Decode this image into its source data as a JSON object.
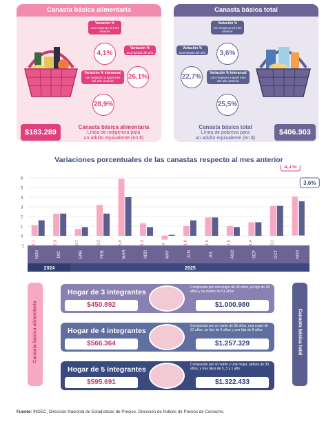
{
  "food": {
    "title": "Canasta básica alimentaria",
    "monthly_label": "Variación %",
    "monthly_sub": "con respecto al mes anterior",
    "monthly_value": "4,1%",
    "ytd_label": "Variación %",
    "ytd_sub": "acumulada del año",
    "ytd_value": "26,1%",
    "yoy_label": "Variación % interanual",
    "yoy_sub": "con respecto a igual mes del año anterior",
    "yoy_value": "28,9%",
    "amount": "$183.289",
    "desc_title": "Canasta básica alimentaria",
    "desc_line1": "Línea de indigencia para",
    "desc_line2": "un adulto equivalente (en $)"
  },
  "total": {
    "title": "Canasta básica total",
    "monthly_label": "Variación %",
    "monthly_sub": "con respecto al mes anterior",
    "monthly_value": "3,6%",
    "ytd_label": "Variación %",
    "ytd_sub": "acumulada del año",
    "ytd_value": "22,7%",
    "yoy_label": "Variación % interanual",
    "yoy_sub": "con respecto a igual mes del año anterior",
    "yoy_value": "25,5%",
    "amount": "$406.903",
    "desc_title": "Canasta básica total",
    "desc_line1": "Línea de pobreza para",
    "desc_line2": "un adulto equivalente (en $)"
  },
  "colors": {
    "pink": "#f7a9c4",
    "pink_dark": "#e0407e",
    "pink_bg": "#fbe3eb",
    "purple": "#6d6496",
    "purple_bg": "#e9e6f1",
    "navy": "#4a5a8c"
  },
  "chart_data": {
    "type": "bar",
    "title": "Variaciones porcentuales de las canastas respecto al mes anterior",
    "categories": [
      "NOV",
      "DIC",
      "ENE",
      "FEB",
      "MAR",
      "ABR",
      "MAY",
      "JUN",
      "JUL",
      "AGO",
      "SEP",
      "OCT",
      "NOV"
    ],
    "year_labels": [
      "2024",
      "2025"
    ],
    "series": [
      {
        "name": "Canasta básica alimentaria",
        "color": "#f7a9c4",
        "values": [
          1.1,
          2.3,
          0.7,
          3.2,
          5.9,
          1.3,
          -0.4,
          1.0,
          1.9,
          1.0,
          1.4,
          3.1,
          4.1
        ],
        "labels": [
          "1,1",
          "2,3",
          "0,7",
          "3,2",
          "5,9",
          "1,3",
          "-0,4",
          "1,0",
          "1,9",
          "1,0",
          "1,4",
          "3,1",
          "4,1%"
        ]
      },
      {
        "name": "Canasta básica total",
        "color": "#5a5f8f",
        "values": [
          1.6,
          2.3,
          0.9,
          2.3,
          4.0,
          0.9,
          0.1,
          1.6,
          1.9,
          0.9,
          1.4,
          3.1,
          3.6
        ],
        "labels": [
          "1,6",
          "2,3",
          "0,9",
          "2,3",
          "4,0",
          "0,9",
          "0,1",
          "1,6",
          "1,9",
          "0,9",
          "1,4",
          "3,1",
          "3,6%"
        ]
      }
    ],
    "yticks": [
      "6",
      "5",
      "4",
      "3",
      "2",
      "1",
      "0",
      "-1"
    ],
    "ylim": [
      -1,
      6
    ],
    "grid": true
  },
  "side_left": "Canasta básica alimentaria",
  "side_right": "Canasta básica total",
  "households": [
    {
      "label": "Hogar de 3 integrantes",
      "food": "$450.892",
      "total": "$1.000.980",
      "note": "Compuesto por una mujer de 35 años, su hijo de 18 años y su madre de 61 años",
      "color": "#8a81b3"
    },
    {
      "label": "Hogar de 4 integrantes",
      "food": "$566.364",
      "total": "$1.257.329",
      "note": "Compuesto por un varón de 35 años, una mujer de 31 años, un hijo de 6 años y una hija de 8 años",
      "color": "#5f6f9f"
    },
    {
      "label": "Hogar de 5 integrantes",
      "food": "$595.691",
      "total": "$1.322.433",
      "note": "Compuesto por un varón y una mujer, ambos de 30 años, y tres hijos de 5, 3 y 1 año",
      "color": "#3a4a7e"
    }
  ],
  "source_bold": "Fuente:",
  "source_text": " INDEC, Dirección Nacional de Estadísticas de Precios. Dirección de Índices de Precios de Consumo."
}
